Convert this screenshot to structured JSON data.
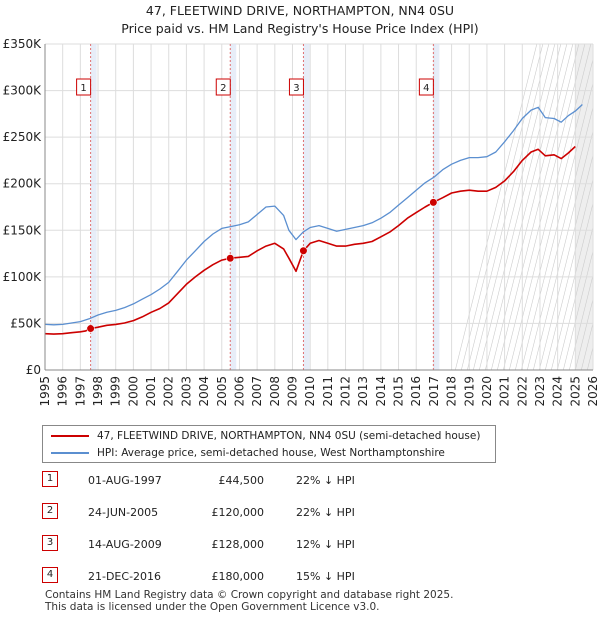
{
  "chart_data": {
    "type": "line",
    "title_line1": "47, FLEETWIND DRIVE, NORTHAMPTON, NN4 0SU",
    "title_line2": "Price paid vs. HM Land Registry's House Price Index (HPI)",
    "x_ticks": [
      "1995",
      "1996",
      "1997",
      "1998",
      "1999",
      "2000",
      "2001",
      "2002",
      "2003",
      "2004",
      "2005",
      "2006",
      "2007",
      "2008",
      "2009",
      "2010",
      "2011",
      "2012",
      "2013",
      "2014",
      "2015",
      "2016",
      "2017",
      "2018",
      "2019",
      "2020",
      "2021",
      "2022",
      "2023",
      "2024",
      "2025",
      "2026"
    ],
    "y_ticks": [
      {
        "value": 0,
        "label": "£0"
      },
      {
        "value": 50000,
        "label": "£50K"
      },
      {
        "value": 100000,
        "label": "£100K"
      },
      {
        "value": 150000,
        "label": "£150K"
      },
      {
        "value": 200000,
        "label": "£200K"
      },
      {
        "value": 250000,
        "label": "£250K"
      },
      {
        "value": 300000,
        "label": "£300K"
      },
      {
        "value": 350000,
        "label": "£350K"
      }
    ],
    "xlim": [
      1995,
      2026
    ],
    "ylim": [
      0,
      350000
    ],
    "forecast_start": 2025.0,
    "colors": {
      "property": "#cc0000",
      "hpi": "#5b8fd0",
      "event_band": "#dde6f5",
      "grid": "#dddddd",
      "forecast": "#eeeeee"
    },
    "series": [
      {
        "name": "47, FLEETWIND DRIVE, NORTHAMPTON, NN4 0SU (semi-detached house)",
        "key": "property",
        "x": [
          1995.0,
          1995.5,
          1996.0,
          1996.5,
          1997.0,
          1997.3,
          1997.58,
          1998.0,
          1998.5,
          1999.0,
          1999.5,
          2000.0,
          2000.5,
          2001.0,
          2001.5,
          2002.0,
          2002.5,
          2003.0,
          2003.5,
          2004.0,
          2004.5,
          2005.0,
          2005.48,
          2006.0,
          2006.5,
          2007.0,
          2007.5,
          2008.0,
          2008.5,
          2008.8,
          2009.2,
          2009.62,
          2010.0,
          2010.5,
          2011.0,
          2011.5,
          2012.0,
          2012.5,
          2013.0,
          2013.5,
          2014.0,
          2014.5,
          2015.0,
          2015.5,
          2016.0,
          2016.5,
          2016.97,
          2017.5,
          2018.0,
          2018.5,
          2019.0,
          2019.5,
          2020.0,
          2020.5,
          2021.0,
          2021.5,
          2022.0,
          2022.5,
          2022.9,
          2023.3,
          2023.8,
          2024.2,
          2024.6,
          2025.0
        ],
        "y": [
          39000,
          38500,
          39000,
          40000,
          41000,
          42000,
          44500,
          46000,
          48000,
          49000,
          50500,
          53000,
          57000,
          62000,
          66000,
          72000,
          82000,
          92000,
          100000,
          107000,
          113000,
          118000,
          120000,
          121000,
          122000,
          128000,
          133000,
          136000,
          130000,
          120000,
          106000,
          128000,
          136000,
          139000,
          136000,
          133000,
          133000,
          135000,
          136000,
          138000,
          143000,
          148000,
          155000,
          163000,
          169000,
          175000,
          180000,
          185000,
          190000,
          192000,
          193000,
          192000,
          192000,
          196000,
          203000,
          213000,
          225000,
          234000,
          237000,
          230000,
          231000,
          227000,
          233000,
          240000
        ]
      },
      {
        "name": "HPI: Average price, semi-detached house, West Northamptonshire",
        "key": "hpi",
        "x": [
          1995.0,
          1995.5,
          1996.0,
          1996.5,
          1997.0,
          1997.5,
          1998.0,
          1998.5,
          1999.0,
          1999.5,
          2000.0,
          2000.5,
          2001.0,
          2001.5,
          2002.0,
          2002.5,
          2003.0,
          2003.5,
          2004.0,
          2004.5,
          2005.0,
          2005.5,
          2006.0,
          2006.5,
          2007.0,
          2007.5,
          2008.0,
          2008.5,
          2008.8,
          2009.2,
          2009.6,
          2010.0,
          2010.5,
          2011.0,
          2011.5,
          2012.0,
          2012.5,
          2013.0,
          2013.5,
          2014.0,
          2014.5,
          2015.0,
          2015.5,
          2016.0,
          2016.5,
          2017.0,
          2017.5,
          2018.0,
          2018.5,
          2019.0,
          2019.5,
          2020.0,
          2020.5,
          2021.0,
          2021.5,
          2022.0,
          2022.5,
          2022.9,
          2023.3,
          2023.8,
          2024.2,
          2024.6,
          2025.0,
          2025.4
        ],
        "y": [
          49000,
          48500,
          49000,
          50500,
          52000,
          55000,
          59000,
          62000,
          64000,
          67000,
          71000,
          76000,
          81000,
          87000,
          94000,
          106000,
          118000,
          128000,
          138000,
          146000,
          152000,
          154000,
          156000,
          159000,
          167000,
          175000,
          176000,
          166000,
          150000,
          140000,
          148000,
          153000,
          155000,
          152000,
          149000,
          151000,
          153000,
          155000,
          158000,
          163000,
          169000,
          177000,
          185000,
          193000,
          201000,
          207000,
          215000,
          221000,
          225000,
          228000,
          228000,
          229000,
          234000,
          245000,
          257000,
          270000,
          279000,
          282000,
          271000,
          270000,
          266000,
          273000,
          278000,
          285000
        ]
      }
    ],
    "sales": [
      {
        "number": "1",
        "year": 1997.58,
        "price_value": 44500,
        "date": "01-AUG-1997",
        "price": "£44,500",
        "hpi": "22% ↓ HPI"
      },
      {
        "number": "2",
        "year": 2005.48,
        "price_value": 120000,
        "date": "24-JUN-2005",
        "price": "£120,000",
        "hpi": "22% ↓ HPI"
      },
      {
        "number": "3",
        "year": 2009.62,
        "price_value": 128000,
        "date": "14-AUG-2009",
        "price": "£128,000",
        "hpi": "12% ↓ HPI"
      },
      {
        "number": "4",
        "year": 2016.97,
        "price_value": 180000,
        "date": "21-DEC-2016",
        "price": "£180,000",
        "hpi": "15% ↓ HPI"
      }
    ],
    "legend": {
      "property_label": "47, FLEETWIND DRIVE, NORTHAMPTON, NN4 0SU (semi-detached house)",
      "hpi_label": "HPI: Average price, semi-detached house, West Northamptonshire"
    }
  },
  "footer": {
    "line1": "Contains HM Land Registry data © Crown copyright and database right 2025.",
    "line2": "This data is licensed under the Open Government Licence v3.0."
  }
}
